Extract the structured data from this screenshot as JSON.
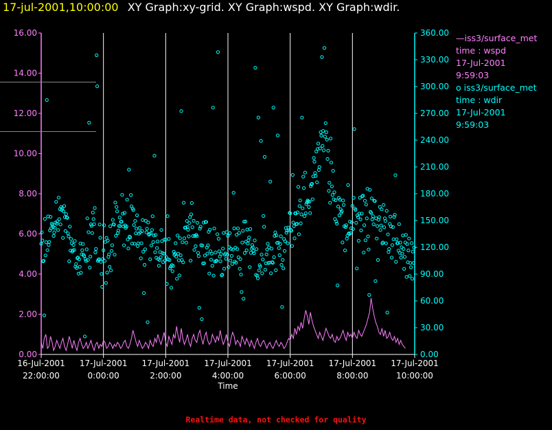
{
  "title": {
    "timestamp": "17-jul-2001,10:00:00",
    "graphs": "XY Graph:xy-grid.  XY Graph:wspd.  XY Graph:wdir."
  },
  "colors": {
    "background": "#000000",
    "title": "#ffff00",
    "wspd": "#ff80ff",
    "wdir": "#00ffff",
    "grid": "#ffffff",
    "warning": "#ff1010"
  },
  "legend": {
    "wspd": {
      "marker": "—",
      "name": "iss3/surface_met",
      "var": "time : wspd",
      "date": "17-Jul-2001",
      "time": "9:59:03"
    },
    "wdir": {
      "marker": "o",
      "name": "iss3/surface_met",
      "var": "time : wdir",
      "date": "17-Jul-2001",
      "time": "9:59:03"
    }
  },
  "footer_note": "Realtime data, not checked for quality",
  "chart_data": {
    "type": "line+scatter",
    "xlabel": "Time",
    "x_range_hours": [
      -2,
      10
    ],
    "x_ticks": [
      {
        "h": -2,
        "date": "16-Jul-2001",
        "time": "22:00:00"
      },
      {
        "h": 0,
        "date": "17-Jul-2001",
        "time": "0:00:00"
      },
      {
        "h": 2,
        "date": "17-Jul-2001",
        "time": "2:00:00"
      },
      {
        "h": 4,
        "date": "17-Jul-2001",
        "time": "4:00:00"
      },
      {
        "h": 6,
        "date": "17-Jul-2001",
        "time": "6:00:00"
      },
      {
        "h": 8,
        "date": "17-Jul-2001",
        "time": "8:00:00"
      },
      {
        "h": 10,
        "date": "17-Jul-2001",
        "time": "10:00:00"
      }
    ],
    "y_left": {
      "name": "wspd",
      "range": [
        0,
        16
      ],
      "ticks": [
        "0.00",
        "2.00",
        "4.00",
        "6.00",
        "8.00",
        "10.00",
        "12.00",
        "14.00",
        "16.00"
      ]
    },
    "y_right": {
      "name": "wdir",
      "range": [
        0,
        360
      ],
      "ticks": [
        "0.00",
        "30.00",
        "60.00",
        "90.00",
        "120.00",
        "150.00",
        "180.00",
        "210.00",
        "240.00",
        "270.00",
        "300.00",
        "330.00",
        "360.00"
      ]
    },
    "vertical_grid_hours": [
      0,
      2,
      4,
      6,
      8,
      10
    ],
    "series": [
      {
        "name": "wspd",
        "type": "line",
        "axis": "left",
        "x_start": -2.0,
        "x_step": 0.05,
        "values": [
          0.6,
          0.3,
          0.8,
          1.0,
          0.3,
          0.4,
          0.9,
          0.6,
          0.2,
          0.4,
          0.7,
          0.5,
          0.3,
          0.6,
          0.8,
          0.4,
          0.2,
          0.5,
          0.9,
          0.6,
          0.3,
          0.7,
          0.4,
          0.2,
          0.6,
          0.8,
          0.5,
          0.3,
          0.4,
          0.6,
          0.3,
          0.5,
          0.7,
          0.4,
          0.2,
          0.5,
          0.6,
          0.3,
          0.5,
          0.4,
          0.7,
          0.6,
          0.3,
          0.4,
          0.6,
          0.5,
          0.3,
          0.5,
          0.4,
          0.6,
          0.5,
          0.3,
          0.4,
          0.6,
          0.7,
          0.4,
          0.3,
          0.5,
          0.8,
          1.2,
          0.9,
          0.6,
          0.4,
          0.7,
          0.5,
          0.3,
          0.4,
          0.6,
          0.5,
          0.3,
          0.7,
          0.5,
          0.4,
          0.8,
          0.6,
          1.0,
          0.7,
          0.5,
          0.8,
          1.1,
          0.6,
          0.4,
          0.9,
          0.7,
          0.5,
          1.0,
          0.8,
          1.4,
          0.9,
          0.6,
          1.3,
          0.8,
          0.5,
          0.7,
          1.0,
          0.6,
          0.4,
          0.8,
          1.0,
          0.7,
          0.6,
          1.0,
          1.2,
          0.8,
          0.5,
          0.9,
          1.1,
          0.7,
          0.5,
          0.6,
          1.0,
          0.8,
          0.6,
          0.9,
          0.7,
          1.2,
          0.8,
          0.5,
          0.7,
          1.0,
          0.6,
          0.4,
          0.8,
          1.1,
          0.9,
          0.5,
          0.7,
          0.6,
          0.4,
          0.9,
          0.7,
          0.5,
          0.8,
          0.6,
          0.4,
          0.7,
          0.5,
          0.3,
          0.6,
          0.8,
          0.5,
          0.4,
          0.6,
          0.7,
          0.5,
          0.3,
          0.5,
          0.6,
          0.4,
          0.3,
          0.5,
          0.7,
          0.5,
          0.4,
          0.6,
          0.5,
          0.3,
          0.4,
          0.6,
          0.8,
          0.7,
          1.0,
          0.8,
          1.3,
          1.0,
          1.4,
          1.2,
          1.6,
          1.3,
          1.8,
          2.2,
          1.9,
          1.5,
          2.1,
          1.7,
          1.4,
          1.2,
          1.0,
          0.8,
          1.1,
          0.9,
          0.7,
          1.0,
          1.3,
          1.1,
          0.9,
          0.8,
          1.0,
          0.7,
          0.6,
          0.9,
          0.7,
          0.8,
          1.0,
          1.2,
          0.9,
          0.7,
          1.1,
          0.9,
          1.0,
          0.8,
          1.1,
          0.9,
          0.8,
          1.2,
          1.0,
          0.9,
          1.1,
          1.3,
          1.5,
          1.8,
          2.1,
          2.8,
          2.3,
          1.9,
          1.6,
          1.4,
          1.1,
          1.0,
          1.3,
          0.9,
          1.2,
          0.8,
          0.9,
          1.1,
          0.8,
          0.7,
          0.9,
          0.6,
          0.8,
          0.5,
          0.7,
          0.5,
          0.4,
          0.3
        ]
      },
      {
        "name": "wdir",
        "type": "scatter",
        "axis": "right",
        "x_start": -2.0,
        "x_step": 0.02,
        "center_profile": [
          130,
          122,
          140,
          150,
          160,
          140,
          120,
          110,
          115,
          125,
          130,
          130,
          115,
          110,
          120,
          140,
          150,
          155,
          150,
          140,
          130,
          125,
          125,
          130,
          120,
          110,
          105,
          115,
          120,
          130,
          140,
          130,
          125,
          120,
          115,
          110,
          108,
          108,
          115,
          120,
          125,
          120,
          115,
          110,
          110,
          112,
          115,
          118,
          125,
          130,
          140,
          150,
          160,
          170,
          180,
          200,
          240,
          230,
          200,
          170,
          160,
          150,
          140,
          150,
          155,
          150,
          150,
          145,
          140,
          150,
          140,
          130,
          120,
          110,
          105,
          100
        ],
        "spread": 38,
        "outlier_rate": 0.1,
        "seed": 7
      }
    ]
  }
}
